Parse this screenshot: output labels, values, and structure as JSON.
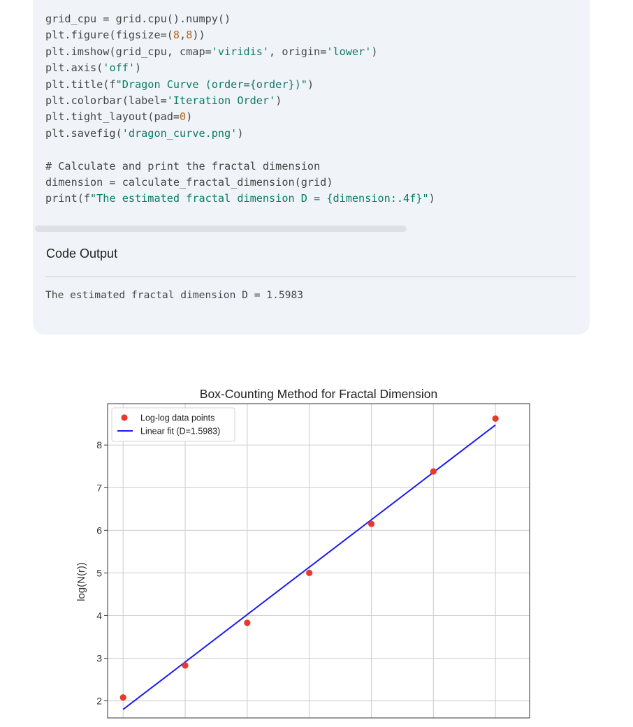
{
  "code_block": {
    "lines": [
      [
        {
          "t": "grid_cpu = grid.cpu().numpy()"
        }
      ],
      [
        {
          "t": "plt.figure(figsize=("
        },
        {
          "t": "8",
          "c": "num"
        },
        {
          "t": ","
        },
        {
          "t": "8",
          "c": "num"
        },
        {
          "t": "))"
        }
      ],
      [
        {
          "t": "plt.imshow(grid_cpu, cmap="
        },
        {
          "t": "'viridis'",
          "c": "str"
        },
        {
          "t": ", origin="
        },
        {
          "t": "'lower'",
          "c": "str"
        },
        {
          "t": ")"
        }
      ],
      [
        {
          "t": "plt.axis("
        },
        {
          "t": "'off'",
          "c": "str"
        },
        {
          "t": ")"
        }
      ],
      [
        {
          "t": "plt.title(f"
        },
        {
          "t": "\"Dragon Curve (order={order})\"",
          "c": "str"
        },
        {
          "t": ")"
        }
      ],
      [
        {
          "t": "plt.colorbar(label="
        },
        {
          "t": "'Iteration Order'",
          "c": "str"
        },
        {
          "t": ")"
        }
      ],
      [
        {
          "t": "plt.tight_layout(pad="
        },
        {
          "t": "0",
          "c": "num"
        },
        {
          "t": ")"
        }
      ],
      [
        {
          "t": "plt.savefig("
        },
        {
          "t": "'dragon_curve.png'",
          "c": "str"
        },
        {
          "t": ")"
        }
      ],
      [
        {
          "t": ""
        }
      ],
      [
        {
          "t": "# Calculate and print the fractal dimension",
          "c": "com"
        }
      ],
      [
        {
          "t": "dimension = calculate_fractal_dimension(grid)"
        }
      ],
      [
        {
          "t": "print(f"
        },
        {
          "t": "\"The estimated fractal dimension D = {dimension:.4f}\"",
          "c": "str"
        },
        {
          "t": ")"
        }
      ]
    ]
  },
  "output": {
    "title": "Code Output",
    "text": "The estimated fractal dimension D = 1.5983"
  },
  "chart_data": {
    "type": "scatter",
    "title": "Box-Counting Method for Fractal Dimension",
    "xlabel": "",
    "ylabel": "log(N(r))",
    "yticks": [
      2,
      3,
      4,
      5,
      6,
      7,
      8
    ],
    "ylim": [
      1.6,
      8.97
    ],
    "xlim": [
      -0.25,
      6.55
    ],
    "grid": true,
    "legend_position": "upper-left",
    "series": [
      {
        "name": "Log-log data points",
        "kind": "points",
        "color": "#e8392b",
        "x": [
          0,
          1,
          2,
          3,
          4,
          5,
          6
        ],
        "y": [
          2.08,
          2.83,
          3.83,
          5.0,
          6.15,
          7.38,
          8.62
        ]
      },
      {
        "name": "Linear fit (D=1.5983)",
        "kind": "line",
        "color": "#1b1bf0",
        "x": [
          0,
          6
        ],
        "y": [
          1.8,
          8.47
        ]
      }
    ]
  }
}
